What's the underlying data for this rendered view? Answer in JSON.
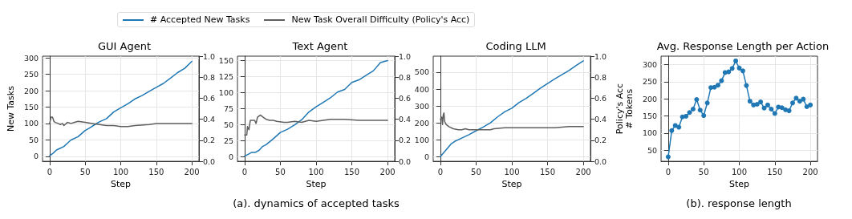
{
  "chart_data": [
    {
      "type": "line",
      "title": "GUI Agent",
      "xlabel": "Step",
      "ylabel": "New Tasks",
      "legend": "top",
      "grid": true,
      "annotations": [
        "(a). dynamics of accepted tasks"
      ],
      "xlim": [
        -10,
        210
      ],
      "xticks": [
        0,
        50,
        100,
        150,
        200
      ],
      "ylim": [
        -15,
        305
      ],
      "yticks": [
        0,
        50,
        100,
        150,
        200,
        250,
        300
      ],
      "y2lim": [
        0,
        1
      ],
      "y2ticks": [
        {
          "value": 0,
          "label": "0.0"
        },
        {
          "value": 0.2,
          "label": "0.2"
        },
        {
          "value": 0.4,
          "label": "0.4"
        },
        {
          "value": 0.6,
          "label": "0.6"
        },
        {
          "value": 0.8,
          "label": "0.8"
        },
        {
          "value": 1,
          "label": "1.0"
        }
      ],
      "series": [
        {
          "name": "# Accepted New Tasks",
          "color": "#1f77b4",
          "x": [
            0,
            5,
            10,
            15,
            20,
            25,
            30,
            40,
            50,
            55,
            60,
            70,
            80,
            90,
            100,
            110,
            120,
            130,
            140,
            150,
            160,
            170,
            180,
            190,
            200
          ],
          "values": [
            2,
            10,
            20,
            25,
            30,
            40,
            50,
            60,
            79,
            85,
            92,
            105,
            115,
            135,
            148,
            160,
            175,
            185,
            198,
            210,
            222,
            238,
            255,
            268,
            289
          ]
        },
        {
          "name": "New Task Overall Difficulty (Policy's Acc)",
          "color": "#5f5f5f",
          "axis": "y2",
          "x": [
            0,
            2,
            4,
            6,
            8,
            12,
            15,
            18,
            20,
            25,
            30,
            35,
            40,
            50,
            60,
            70,
            80,
            90,
            100,
            110,
            120,
            140,
            150,
            170,
            200
          ],
          "values": [
            0.36,
            0.42,
            0.42,
            0.38,
            0.37,
            0.36,
            0.35,
            0.36,
            0.34,
            0.37,
            0.36,
            0.37,
            0.38,
            0.37,
            0.36,
            0.35,
            0.34,
            0.34,
            0.33,
            0.33,
            0.34,
            0.35,
            0.36,
            0.36,
            0.36
          ]
        }
      ]
    },
    {
      "type": "line",
      "title": "Text Agent",
      "xlabel": "Step",
      "grid": true,
      "xlim": [
        -10,
        210
      ],
      "xticks": [
        0,
        50,
        100,
        150,
        200
      ],
      "ylim": [
        -7,
        157
      ],
      "yticks": [
        0,
        25,
        50,
        75,
        100,
        125,
        150
      ],
      "y2lim": [
        0,
        1
      ],
      "y2ticks": [
        {
          "value": 0,
          "label": "0.0"
        },
        {
          "value": 0.2,
          "label": "0.2"
        },
        {
          "value": 0.4,
          "label": "0.4"
        },
        {
          "value": 0.6,
          "label": "0.6"
        },
        {
          "value": 0.8,
          "label": "0.8"
        },
        {
          "value": 1,
          "label": "1.0"
        }
      ],
      "series": [
        {
          "color": "#1f77b4",
          "x": [
            0,
            5,
            10,
            15,
            20,
            25,
            30,
            40,
            50,
            60,
            70,
            80,
            90,
            100,
            110,
            120,
            130,
            140,
            150,
            160,
            170,
            180,
            190,
            200
          ],
          "values": [
            1,
            4,
            7,
            7,
            10,
            16,
            19,
            28,
            38,
            43,
            50,
            58,
            70,
            78,
            85,
            92,
            101,
            105,
            116,
            120,
            127,
            134,
            147,
            150
          ]
        },
        {
          "color": "#5f5f5f",
          "axis": "y2",
          "x": [
            0,
            3,
            4,
            6,
            8,
            14,
            16,
            18,
            22,
            26,
            30,
            35,
            40,
            45,
            55,
            60,
            70,
            80,
            90,
            100,
            120,
            140,
            160,
            180,
            200
          ],
          "values": [
            0.25,
            0.25,
            0.33,
            0.3,
            0.39,
            0.39,
            0.36,
            0.42,
            0.44,
            0.42,
            0.4,
            0.39,
            0.39,
            0.38,
            0.37,
            0.37,
            0.38,
            0.37,
            0.39,
            0.38,
            0.4,
            0.4,
            0.39,
            0.39,
            0.39
          ]
        }
      ]
    },
    {
      "type": "line",
      "title": "Coding LLM",
      "xlabel": "Step",
      "y2label": "Policy's Acc",
      "grid": true,
      "xlim": [
        -10,
        210
      ],
      "xticks": [
        0,
        50,
        100,
        150,
        200
      ],
      "ylim": [
        -28,
        595
      ],
      "yticks": [
        0,
        100,
        200,
        300,
        400,
        500
      ],
      "y2lim": [
        0,
        1
      ],
      "y2ticks": [
        {
          "value": 0,
          "label": "0.0"
        },
        {
          "value": 0.2,
          "label": "0.2"
        },
        {
          "value": 0.4,
          "label": "0.4"
        },
        {
          "value": 0.6,
          "label": "0.6"
        },
        {
          "value": 0.8,
          "label": "0.8"
        },
        {
          "value": 1,
          "label": "1.0"
        }
      ],
      "series": [
        {
          "color": "#1f77b4",
          "x": [
            0,
            5,
            10,
            15,
            20,
            30,
            40,
            50,
            60,
            70,
            80,
            90,
            100,
            110,
            120,
            130,
            140,
            150,
            160,
            170,
            180,
            190,
            200
          ],
          "values": [
            0,
            25,
            50,
            75,
            90,
            110,
            130,
            153,
            175,
            200,
            235,
            265,
            287,
            320,
            345,
            375,
            405,
            433,
            460,
            485,
            510,
            540,
            567
          ]
        },
        {
          "color": "#5f5f5f",
          "axis": "y2",
          "x": [
            0,
            2,
            3,
            4,
            5,
            6,
            8,
            12,
            18,
            25,
            30,
            35,
            40,
            50,
            60,
            70,
            75,
            90,
            120,
            160,
            180,
            200
          ],
          "values": [
            0.4,
            0.42,
            0.35,
            0.44,
            0.46,
            0.38,
            0.35,
            0.33,
            0.31,
            0.3,
            0.3,
            0.31,
            0.3,
            0.3,
            0.3,
            0.3,
            0.31,
            0.32,
            0.32,
            0.32,
            0.33,
            0.33
          ]
        }
      ]
    },
    {
      "type": "line",
      "title": "Avg. Response Length per Action",
      "xlabel": "Step",
      "ylabel": "# Tokens",
      "grid": true,
      "marker": "circle",
      "annotations": [
        "(b). response length"
      ],
      "xlim": [
        -10,
        210
      ],
      "xticks": [
        0,
        50,
        100,
        150,
        200
      ],
      "ylim": [
        17,
        325
      ],
      "yticks": [
        50,
        100,
        150,
        200,
        250,
        300
      ],
      "series": [
        {
          "color": "#1f77b4",
          "x": [
            0,
            5,
            10,
            15,
            20,
            25,
            30,
            35,
            40,
            45,
            50,
            55,
            60,
            65,
            70,
            75,
            80,
            85,
            90,
            95,
            100,
            105,
            110,
            115,
            120,
            125,
            130,
            135,
            140,
            145,
            150,
            155,
            160,
            165,
            170,
            175,
            180,
            185,
            190,
            195,
            200
          ],
          "values": [
            30,
            107,
            122,
            117,
            147,
            149,
            160,
            170,
            198,
            167,
            151,
            188,
            233,
            234,
            240,
            253,
            277,
            279,
            289,
            311,
            290,
            282,
            239,
            193,
            182,
            184,
            191,
            173,
            182,
            170,
            157,
            176,
            174,
            168,
            165,
            188,
            202,
            193,
            199,
            177,
            182
          ]
        }
      ]
    }
  ]
}
